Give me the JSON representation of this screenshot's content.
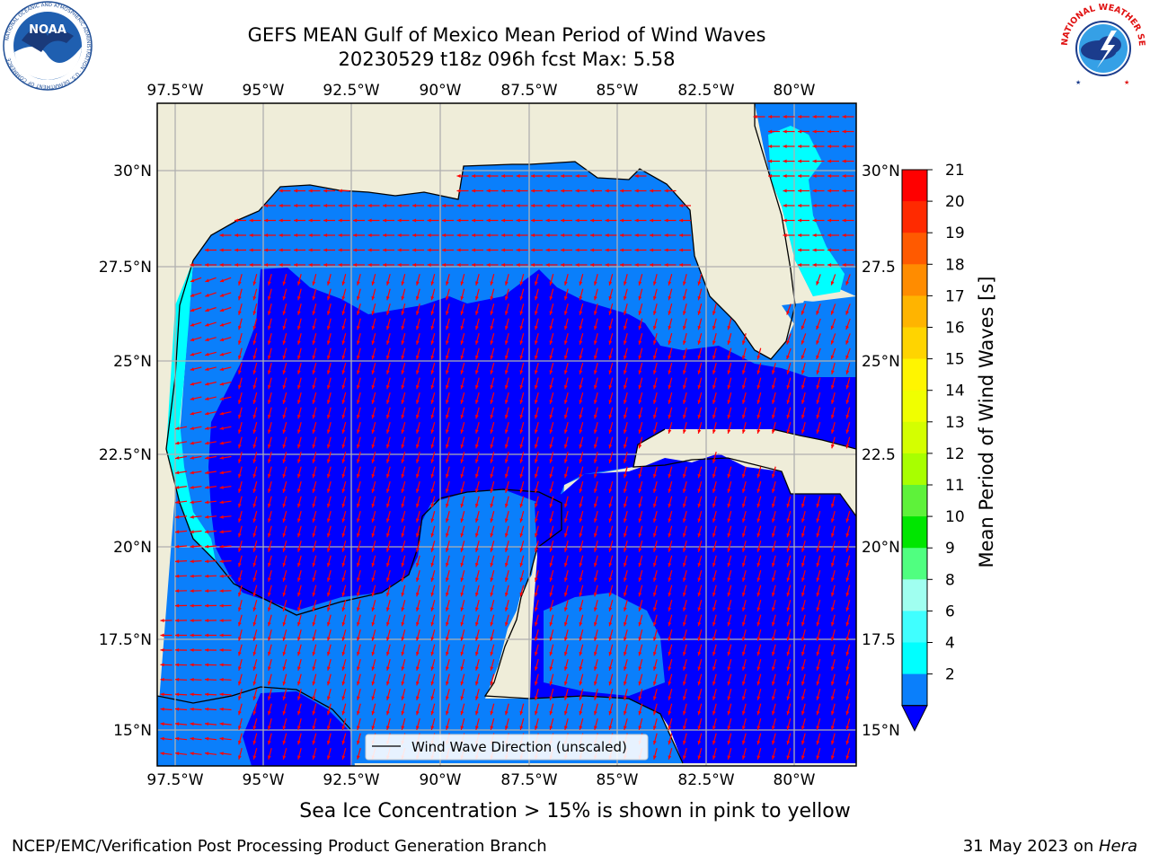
{
  "header": {
    "title_line1": "GEFS MEAN Gulf of Mexico Mean Period of Wind Waves",
    "title_line2": "20230529 t18z 096h fcst   Max: 5.58"
  },
  "logos": {
    "left": {
      "text": "NOAA",
      "ring_text": "NATIONAL OCEANIC AND ATMOSPHERIC ADMINISTRATION · U.S. DEPARTMENT OF COMMERCE"
    },
    "right": {
      "ring_text": "NATIONAL WEATHER SERVICE"
    }
  },
  "map": {
    "lon_labels": [
      "97.5°W",
      "95°W",
      "92.5°W",
      "90°W",
      "87.5°W",
      "85°W",
      "82.5°W",
      "80°W"
    ],
    "lat_labels_left": [
      "30°N",
      "27.5°N",
      "25°N",
      "22.5°N",
      "20°N",
      "17.5°N",
      "15°N"
    ],
    "lat_labels_right": [
      "30°N",
      "27.5",
      "25°N",
      "22.5",
      "20°N",
      "17.5",
      "15°N"
    ],
    "legend": "Wind Wave Direction (unscaled)",
    "colors": {
      "land": "#efedd9",
      "blue_dark": "#0000ff",
      "blue_mid": "#0a7ffb",
      "cyan": "#00ffff",
      "arrow": "#ff0000"
    }
  },
  "colorbar": {
    "label": "Mean Period of Wind Waves [s]",
    "ticks": [
      "21",
      "20",
      "19",
      "18",
      "17",
      "16",
      "15",
      "14",
      "13",
      "12",
      "11",
      "10",
      "9",
      "8",
      "6",
      "4",
      "2"
    ],
    "colors": [
      "#ff0000",
      "#ff2a00",
      "#ff5a00",
      "#ff8c00",
      "#ffb400",
      "#ffd400",
      "#fff500",
      "#f0ff00",
      "#d4ff00",
      "#a8ff00",
      "#5ef23a",
      "#00e600",
      "#50ff80",
      "#a0fff0",
      "#40ffff",
      "#00ffff",
      "#0a7ffb",
      "#0000ff"
    ]
  },
  "footer": {
    "sea_ice_note": "Sea Ice Concentration > 15% is shown in pink to yellow",
    "credit_left": "NCEP/EMC/Verification Post Processing Product Generation Branch",
    "credit_right_prefix": "31 May 2023 on ",
    "credit_right_host": "Hera"
  }
}
